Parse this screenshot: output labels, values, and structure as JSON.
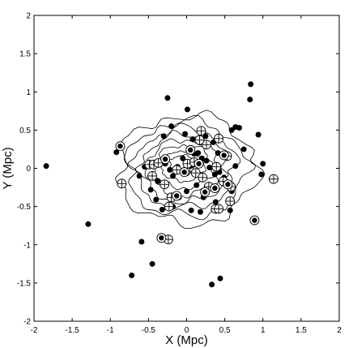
{
  "chart_data": {
    "type": "scatter",
    "xlabel": "X (Mpc)",
    "ylabel": "Y (Mpc)",
    "xlim": [
      -2,
      2
    ],
    "ylim": [
      -2,
      2
    ],
    "xticks": [
      -2,
      -1.5,
      -1,
      -0.5,
      0,
      0.5,
      1,
      1.5,
      2
    ],
    "yticks": [
      -2,
      -1.5,
      -1,
      -0.5,
      0,
      0.5,
      1,
      1.5,
      2
    ],
    "grid": false,
    "legend": "none",
    "center": [
      0.0,
      0.0
    ],
    "series": [
      {
        "marker": "filled-circle",
        "points": [
          [
            -1.84,
            0.03
          ],
          [
            -1.29,
            -0.73
          ],
          [
            -0.72,
            -1.4
          ],
          [
            -0.59,
            -0.96
          ],
          [
            -0.45,
            -1.25
          ],
          [
            0.33,
            -1.52
          ],
          [
            0.44,
            -1.44
          ],
          [
            -0.25,
            0.92
          ],
          [
            0.01,
            0.77
          ],
          [
            0.84,
            1.1
          ],
          [
            0.83,
            0.9
          ],
          [
            0.64,
            0.54
          ],
          [
            0.69,
            0.53
          ],
          [
            0.59,
            0.5
          ],
          [
            0.94,
            0.44
          ],
          [
            1.0,
            0.06
          ],
          [
            0.98,
            -0.08
          ],
          [
            0.75,
            0.25
          ],
          [
            -0.89,
            0.28
          ],
          [
            -0.92,
            0.21
          ],
          [
            -0.2,
            0.55
          ],
          [
            -0.02,
            0.45
          ],
          [
            0.25,
            0.42
          ],
          [
            0.35,
            0.34
          ],
          [
            -0.3,
            0.42
          ],
          [
            -0.33,
            0.09
          ],
          [
            -0.28,
            0.06
          ],
          [
            -0.22,
            -0.02
          ],
          [
            -0.18,
            -0.1
          ],
          [
            -0.12,
            0.02
          ],
          [
            -0.05,
            0.13
          ],
          [
            0.05,
            0.03
          ],
          [
            0.1,
            0.19
          ],
          [
            0.15,
            0.2
          ],
          [
            0.2,
            0.13
          ],
          [
            0.26,
            0.1
          ],
          [
            0.3,
            0.01
          ],
          [
            0.37,
            -0.08
          ],
          [
            0.43,
            -0.05
          ],
          [
            0.49,
            -0.12
          ],
          [
            -0.38,
            -0.17
          ],
          [
            -0.47,
            -0.28
          ],
          [
            -0.4,
            -0.41
          ],
          [
            -0.32,
            -0.54
          ],
          [
            -0.18,
            -0.5
          ],
          [
            -0.1,
            -0.38
          ],
          [
            0.0,
            -0.3
          ],
          [
            0.13,
            -0.22
          ],
          [
            0.22,
            -0.38
          ],
          [
            0.3,
            -0.26
          ],
          [
            0.06,
            -0.55
          ],
          [
            0.18,
            -0.57
          ],
          [
            0.38,
            -0.44
          ],
          [
            0.57,
            -0.55
          ],
          [
            -0.62,
            -0.1
          ],
          [
            0.64,
            0.03
          ],
          [
            0.59,
            -0.3
          ],
          [
            0.08,
            0.38
          ],
          [
            0.41,
            0.2
          ],
          [
            -0.55,
            0.02
          ]
        ]
      },
      {
        "marker": "circled-cross",
        "points": [
          [
            -0.49,
            0.05
          ],
          [
            -0.43,
            0.05
          ],
          [
            -0.13,
            -0.02
          ],
          [
            -0.01,
            -0.04
          ],
          [
            0.01,
            0.06
          ],
          [
            0.12,
            -0.06
          ],
          [
            0.19,
            0.49
          ],
          [
            0.26,
            0.31
          ],
          [
            0.17,
            0.37
          ],
          [
            0.39,
            0.02
          ],
          [
            0.48,
            -0.17
          ],
          [
            0.57,
            -0.43
          ],
          [
            1.14,
            -0.14
          ],
          [
            0.29,
            -0.24
          ],
          [
            0.38,
            -0.53
          ],
          [
            0.42,
            -0.53
          ],
          [
            0.58,
            -0.24
          ],
          [
            -0.29,
            -0.21
          ],
          [
            -0.2,
            -0.38
          ],
          [
            -0.23,
            -0.5
          ],
          [
            -0.45,
            -0.1
          ],
          [
            -0.37,
            0.07
          ],
          [
            -0.85,
            -0.2
          ],
          [
            0.1,
            0.08
          ],
          [
            0.21,
            -0.12
          ],
          [
            -0.24,
            -0.93
          ],
          [
            0.42,
            0.39
          ],
          [
            0.53,
            0.16
          ]
        ]
      },
      {
        "marker": "ringed-dot",
        "points": [
          [
            -0.33,
            -0.91
          ],
          [
            -0.13,
            -0.36
          ],
          [
            -0.28,
            0.12
          ],
          [
            -0.03,
            -0.05
          ],
          [
            0.49,
            0.17
          ],
          [
            0.54,
            -0.21
          ],
          [
            0.89,
            -0.68
          ],
          [
            0.16,
            0.06
          ],
          [
            0.24,
            -0.31
          ],
          [
            0.37,
            -0.26
          ],
          [
            -0.87,
            0.29
          ],
          [
            0.05,
            0.24
          ]
        ]
      }
    ],
    "contours": [
      {
        "level": 1,
        "cx": -0.05,
        "cy": 0.05,
        "rx": 0.17,
        "ry": 0.12
      },
      {
        "level": 2,
        "cx": -0.05,
        "cy": 0.03,
        "rx": 0.28,
        "ry": 0.2
      },
      {
        "level": 3,
        "cx": -0.04,
        "cy": 0.02,
        "rx": 0.38,
        "ry": 0.28
      },
      {
        "level": 4,
        "cx": -0.04,
        "cy": 0.01,
        "rx": 0.47,
        "ry": 0.36
      },
      {
        "level": 5,
        "cx": -0.03,
        "cy": 0.0,
        "rx": 0.56,
        "ry": 0.44
      },
      {
        "level": 6,
        "cx": -0.02,
        "cy": 0.0,
        "rx": 0.66,
        "ry": 0.52
      },
      {
        "level": 7,
        "cx": 0.0,
        "cy": -0.01,
        "rx": 0.78,
        "ry": 0.62
      },
      {
        "level": 8,
        "cx": 0.01,
        "cy": -0.02,
        "rx": 0.9,
        "ry": 0.71
      }
    ]
  }
}
